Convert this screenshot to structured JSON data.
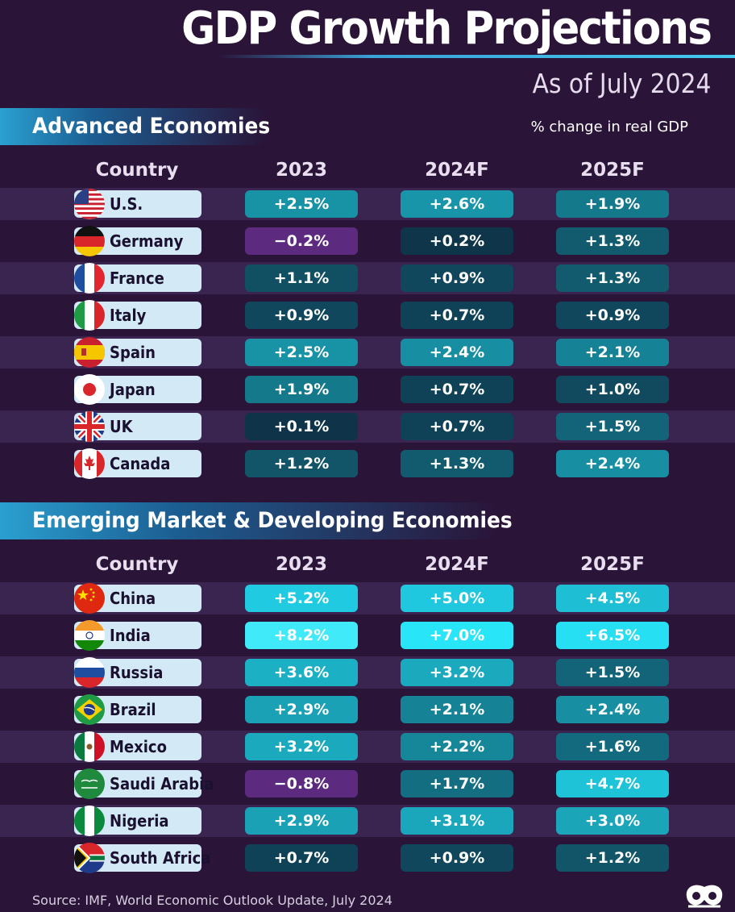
{
  "title": "GDP Growth Projections",
  "subtitle": "As of July 2024",
  "unit_note": "% change in real GDP",
  "source": "Source: IMF, World Economic Outlook Update, July 2024",
  "colors": {
    "background": "#2a1438",
    "row_band": "#3a2450",
    "negative": "#5c2b80",
    "pill": "#d3eaf6"
  },
  "chart_data": [
    {
      "type": "table",
      "title": "Advanced Economies",
      "unit": "% change in real GDP",
      "columns": [
        "Country",
        "2023",
        "2024F",
        "2025F"
      ],
      "rows": [
        {
          "country": "U.S.",
          "flag": "us-flag-icon",
          "values": [
            2.5,
            2.6,
            1.9
          ],
          "labels": [
            "+2.5%",
            "+2.6%",
            "+1.9%"
          ]
        },
        {
          "country": "Germany",
          "flag": "germany-flag-icon",
          "values": [
            -0.2,
            0.2,
            1.3
          ],
          "labels": [
            "−0.2%",
            "+0.2%",
            "+1.3%"
          ]
        },
        {
          "country": "France",
          "flag": "france-flag-icon",
          "values": [
            1.1,
            0.9,
            1.3
          ],
          "labels": [
            "+1.1%",
            "+0.9%",
            "+1.3%"
          ]
        },
        {
          "country": "Italy",
          "flag": "italy-flag-icon",
          "values": [
            0.9,
            0.7,
            0.9
          ],
          "labels": [
            "+0.9%",
            "+0.7%",
            "+0.9%"
          ]
        },
        {
          "country": "Spain",
          "flag": "spain-flag-icon",
          "values": [
            2.5,
            2.4,
            2.1
          ],
          "labels": [
            "+2.5%",
            "+2.4%",
            "+2.1%"
          ]
        },
        {
          "country": "Japan",
          "flag": "japan-flag-icon",
          "values": [
            1.9,
            0.7,
            1.0
          ],
          "labels": [
            "+1.9%",
            "+0.7%",
            "+1.0%"
          ]
        },
        {
          "country": "UK",
          "flag": "uk-flag-icon",
          "values": [
            0.1,
            0.7,
            1.5
          ],
          "labels": [
            "+0.1%",
            "+0.7%",
            "+1.5%"
          ]
        },
        {
          "country": "Canada",
          "flag": "canada-flag-icon",
          "values": [
            1.2,
            1.3,
            2.4
          ],
          "labels": [
            "+1.2%",
            "+1.3%",
            "+2.4%"
          ]
        }
      ]
    },
    {
      "type": "table",
      "title": "Emerging Market & Developing Economies",
      "unit": "% change in real GDP",
      "columns": [
        "Country",
        "2023",
        "2024F",
        "2025F"
      ],
      "rows": [
        {
          "country": "China",
          "flag": "china-flag-icon",
          "values": [
            5.2,
            5.0,
            4.5
          ],
          "labels": [
            "+5.2%",
            "+5.0%",
            "+4.5%"
          ]
        },
        {
          "country": "India",
          "flag": "india-flag-icon",
          "values": [
            8.2,
            7.0,
            6.5
          ],
          "labels": [
            "+8.2%",
            "+7.0%",
            "+6.5%"
          ]
        },
        {
          "country": "Russia",
          "flag": "russia-flag-icon",
          "values": [
            3.6,
            3.2,
            1.5
          ],
          "labels": [
            "+3.6%",
            "+3.2%",
            "+1.5%"
          ]
        },
        {
          "country": "Brazil",
          "flag": "brazil-flag-icon",
          "values": [
            2.9,
            2.1,
            2.4
          ],
          "labels": [
            "+2.9%",
            "+2.1%",
            "+2.4%"
          ]
        },
        {
          "country": "Mexico",
          "flag": "mexico-flag-icon",
          "values": [
            3.2,
            2.2,
            1.6
          ],
          "labels": [
            "+3.2%",
            "+2.2%",
            "+1.6%"
          ]
        },
        {
          "country": "Saudi Arabia",
          "flag": "saudi-arabia-flag-icon",
          "values": [
            -0.8,
            1.7,
            4.7
          ],
          "labels": [
            "−0.8%",
            "+1.7%",
            "+4.7%"
          ]
        },
        {
          "country": "Nigeria",
          "flag": "nigeria-flag-icon",
          "values": [
            2.9,
            3.1,
            3.0
          ],
          "labels": [
            "+2.9%",
            "+3.1%",
            "+3.0%"
          ]
        },
        {
          "country": "South Africa",
          "flag": "south-africa-flag-icon",
          "values": [
            0.7,
            0.9,
            1.2
          ],
          "labels": [
            "+0.7%",
            "+0.9%",
            "+1.2%"
          ]
        }
      ]
    }
  ]
}
